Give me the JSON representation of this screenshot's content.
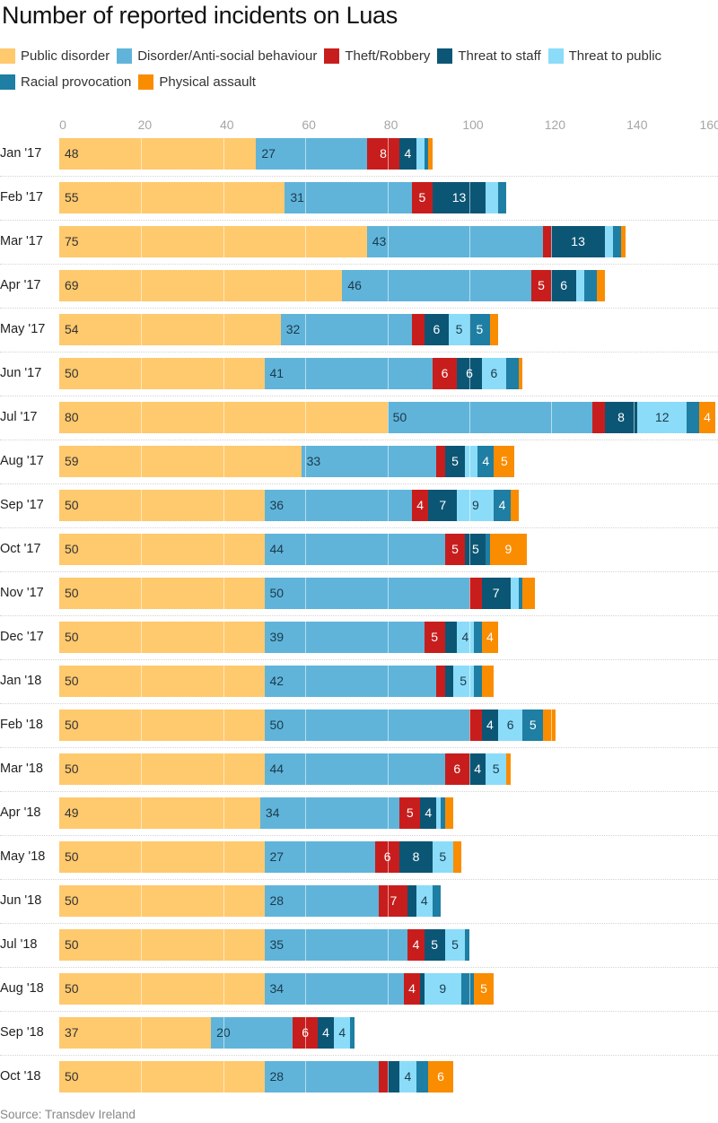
{
  "chart_data": {
    "type": "bar",
    "orientation": "horizontal",
    "stacked": true,
    "title": "Number of reported incidents on Luas",
    "source": "Source: Transdev Ireland",
    "xlabel": "",
    "ylabel": "",
    "xlim": [
      0,
      160
    ],
    "x_ticks": [
      0,
      20,
      40,
      60,
      80,
      100,
      120,
      140,
      160
    ],
    "grid": true,
    "legend_position": "top-left",
    "categories": [
      "Jan '17",
      "Feb '17",
      "Mar '17",
      "Apr '17",
      "May '17",
      "Jun '17",
      "Jul '17",
      "Aug '17",
      "Sep '17",
      "Oct '17",
      "Nov '17",
      "Dec '17",
      "Jan '18",
      "Feb '18",
      "Mar '18",
      "Apr '18",
      "May '18",
      "Jun '18",
      "Jul '18",
      "Aug '18",
      "Sep '18",
      "Oct '18"
    ],
    "series": [
      {
        "name": "Public disorder",
        "color": "#FFC96E",
        "label_color": "#333333",
        "values": [
          48,
          55,
          75,
          69,
          54,
          50,
          80,
          59,
          50,
          50,
          50,
          50,
          50,
          50,
          50,
          49,
          50,
          50,
          50,
          50,
          37,
          50
        ]
      },
      {
        "name": "Disorder/Anti-social behaviour",
        "color": "#60B4DA",
        "label_color": "#1c3a4a",
        "values": [
          27,
          31,
          43,
          46,
          32,
          41,
          50,
          33,
          36,
          44,
          50,
          39,
          42,
          50,
          44,
          34,
          27,
          28,
          35,
          34,
          20,
          28
        ]
      },
      {
        "name": "Theft/Robbery",
        "color": "#C71E1D",
        "label_color": "#ffffff",
        "values": [
          8,
          5,
          2,
          5,
          3,
          6,
          3,
          2,
          4,
          5,
          3,
          5,
          2,
          3,
          6,
          5,
          6,
          7,
          4,
          4,
          6,
          2
        ]
      },
      {
        "name": "Threat to staff",
        "color": "#0C5675",
        "label_color": "#ffffff",
        "values": [
          4,
          13,
          13,
          6,
          6,
          6,
          8,
          5,
          7,
          5,
          7,
          3,
          2,
          4,
          4,
          4,
          8,
          2,
          5,
          1,
          4,
          3
        ]
      },
      {
        "name": "Threat to public",
        "color": "#8BDCF8",
        "label_color": "#1c3a4a",
        "values": [
          2,
          3,
          2,
          2,
          5,
          6,
          12,
          3,
          9,
          0,
          2,
          4,
          5,
          6,
          5,
          1,
          5,
          4,
          5,
          9,
          4,
          4
        ]
      },
      {
        "name": "Racial provocation",
        "color": "#1E7EA3",
        "label_color": "#ffffff",
        "values": [
          1,
          2,
          2,
          3,
          5,
          3,
          3,
          4,
          4,
          1,
          1,
          2,
          2,
          5,
          0,
          1,
          0,
          2,
          1,
          3,
          1,
          3
        ]
      },
      {
        "name": "Physical assault",
        "color": "#FA8C00",
        "label_color": "#ffffff",
        "values": [
          1,
          0,
          1,
          2,
          2,
          1,
          4,
          5,
          2,
          9,
          3,
          4,
          3,
          3,
          1,
          2,
          2,
          0,
          0,
          5,
          0,
          6
        ]
      }
    ],
    "label_min_value": 4
  }
}
